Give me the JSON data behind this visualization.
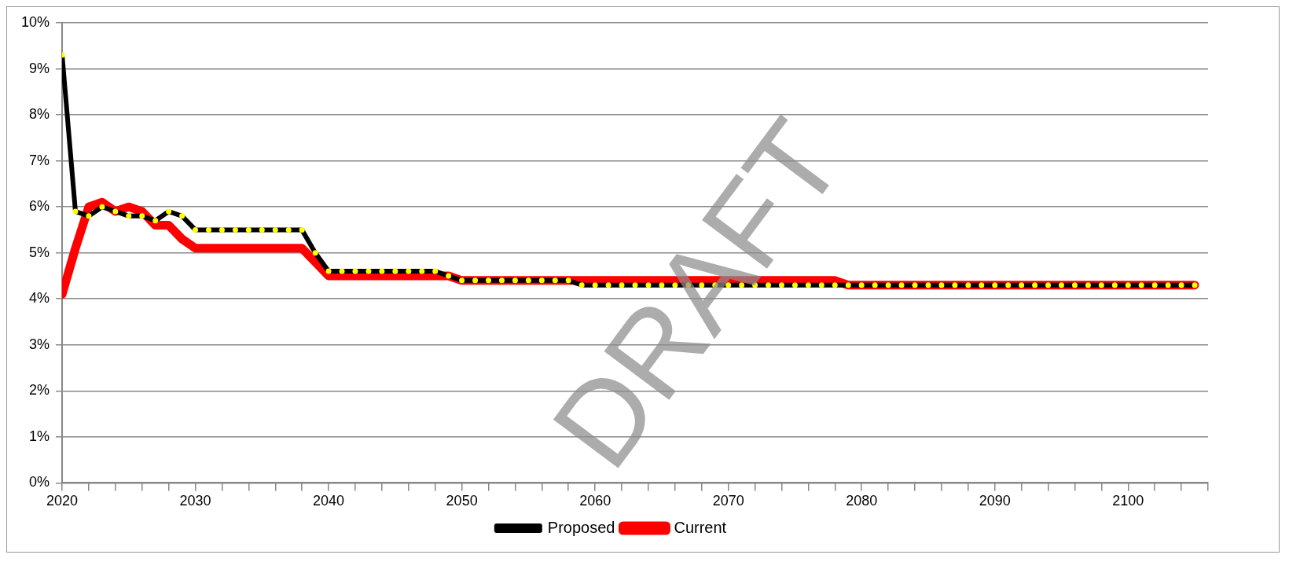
{
  "chart_data": {
    "type": "line",
    "x": [
      2020,
      2021,
      2022,
      2023,
      2024,
      2025,
      2026,
      2027,
      2028,
      2029,
      2030,
      2031,
      2032,
      2033,
      2034,
      2035,
      2036,
      2037,
      2038,
      2039,
      2040,
      2041,
      2042,
      2043,
      2044,
      2045,
      2046,
      2047,
      2048,
      2049,
      2050,
      2051,
      2052,
      2053,
      2054,
      2055,
      2056,
      2057,
      2058,
      2059,
      2060,
      2061,
      2062,
      2063,
      2064,
      2065,
      2066,
      2067,
      2068,
      2069,
      2070,
      2071,
      2072,
      2073,
      2074,
      2075,
      2076,
      2077,
      2078,
      2079,
      2080,
      2081,
      2082,
      2083,
      2084,
      2085,
      2086,
      2087,
      2088,
      2089,
      2090,
      2091,
      2092,
      2093,
      2094,
      2095,
      2096,
      2097,
      2098,
      2099,
      2100,
      2101,
      2102,
      2103,
      2104,
      2105
    ],
    "series": [
      {
        "name": "Proposed",
        "color": "#000000",
        "marker": "circle",
        "values": [
          9.3,
          5.9,
          5.8,
          6.0,
          5.9,
          5.8,
          5.8,
          5.7,
          5.9,
          5.8,
          5.5,
          5.5,
          5.5,
          5.5,
          5.5,
          5.5,
          5.5,
          5.5,
          5.5,
          5.0,
          4.6,
          4.6,
          4.6,
          4.6,
          4.6,
          4.6,
          4.6,
          4.6,
          4.6,
          4.5,
          4.4,
          4.4,
          4.4,
          4.4,
          4.4,
          4.4,
          4.4,
          4.4,
          4.4,
          4.3,
          4.3,
          4.3,
          4.3,
          4.3,
          4.3,
          4.3,
          4.3,
          4.3,
          4.3,
          4.3,
          4.3,
          4.3,
          4.3,
          4.3,
          4.3,
          4.3,
          4.3,
          4.3,
          4.3,
          4.3,
          4.3,
          4.3,
          4.3,
          4.3,
          4.3,
          4.3,
          4.3,
          4.3,
          4.3,
          4.3,
          4.3,
          4.3,
          4.3,
          4.3,
          4.3,
          4.3,
          4.3,
          4.3,
          4.3,
          4.3,
          4.3,
          4.3,
          4.3,
          4.3,
          4.3,
          4.3
        ]
      },
      {
        "name": "Current",
        "color": "#ff0000",
        "marker": "none",
        "values": [
          4.1,
          5.1,
          6.0,
          6.1,
          5.9,
          6.0,
          5.9,
          5.6,
          5.6,
          5.3,
          5.1,
          5.1,
          5.1,
          5.1,
          5.1,
          5.1,
          5.1,
          5.1,
          5.1,
          4.8,
          4.5,
          4.5,
          4.5,
          4.5,
          4.5,
          4.5,
          4.5,
          4.5,
          4.5,
          4.5,
          4.4,
          4.4,
          4.4,
          4.4,
          4.4,
          4.4,
          4.4,
          4.4,
          4.4,
          4.4,
          4.4,
          4.4,
          4.4,
          4.4,
          4.4,
          4.4,
          4.4,
          4.4,
          4.4,
          4.4,
          4.4,
          4.4,
          4.4,
          4.4,
          4.4,
          4.4,
          4.4,
          4.4,
          4.4,
          4.3,
          4.3,
          4.3,
          4.3,
          4.3,
          4.3,
          4.3,
          4.3,
          4.3,
          4.3,
          4.3,
          4.3,
          4.3,
          4.3,
          4.3,
          4.3,
          4.3,
          4.3,
          4.3,
          4.3,
          4.3,
          4.3,
          4.3,
          4.3,
          4.3,
          4.3,
          4.3
        ]
      }
    ],
    "xlim": [
      2020,
      2106
    ],
    "xticks": [
      2020,
      {
        "value": 2022,
        "label": null
      },
      {
        "value": 2024,
        "label": null
      },
      {
        "value": 2026,
        "label": null
      },
      {
        "value": 2028,
        "label": null
      },
      2030,
      {
        "value": 2032,
        "label": null
      },
      {
        "value": 2034,
        "label": null
      },
      {
        "value": 2036,
        "label": null
      },
      {
        "value": 2038,
        "label": null
      },
      2040,
      {
        "value": 2042,
        "label": null
      },
      {
        "value": 2044,
        "label": null
      },
      {
        "value": 2046,
        "label": null
      },
      {
        "value": 2048,
        "label": null
      },
      2050,
      {
        "value": 2052,
        "label": null
      },
      {
        "value": 2054,
        "label": null
      },
      {
        "value": 2056,
        "label": null
      },
      {
        "value": 2058,
        "label": null
      },
      2060,
      {
        "value": 2062,
        "label": null
      },
      {
        "value": 2064,
        "label": null
      },
      {
        "value": 2066,
        "label": null
      },
      {
        "value": 2068,
        "label": null
      },
      2070,
      {
        "value": 2072,
        "label": null
      },
      {
        "value": 2074,
        "label": null
      },
      {
        "value": 2076,
        "label": null
      },
      {
        "value": 2078,
        "label": null
      },
      2080,
      {
        "value": 2082,
        "label": null
      },
      {
        "value": 2084,
        "label": null
      },
      {
        "value": 2086,
        "label": null
      },
      {
        "value": 2088,
        "label": null
      },
      2090,
      {
        "value": 2092,
        "label": null
      },
      {
        "value": 2094,
        "label": null
      },
      {
        "value": 2096,
        "label": null
      },
      {
        "value": 2098,
        "label": null
      },
      2100,
      {
        "value": 2102,
        "label": null
      },
      {
        "value": 2104,
        "label": null
      },
      {
        "value": 2106,
        "label": null
      }
    ],
    "ylim": [
      0,
      10
    ],
    "yticks": [
      {
        "value": 0,
        "label": "0%"
      },
      {
        "value": 1,
        "label": "1%"
      },
      {
        "value": 2,
        "label": "2%"
      },
      {
        "value": 3,
        "label": "3%"
      },
      {
        "value": 4,
        "label": "4%"
      },
      {
        "value": 5,
        "label": "5%"
      },
      {
        "value": 6,
        "label": "6%"
      },
      {
        "value": 7,
        "label": "7%"
      },
      {
        "value": 8,
        "label": "8%"
      },
      {
        "value": 9,
        "label": "9%"
      },
      {
        "value": 10,
        "label": "10%"
      }
    ],
    "grid": "y",
    "legend": "bottom",
    "line_style": "solid",
    "annotations": [
      "DRAFT"
    ]
  }
}
